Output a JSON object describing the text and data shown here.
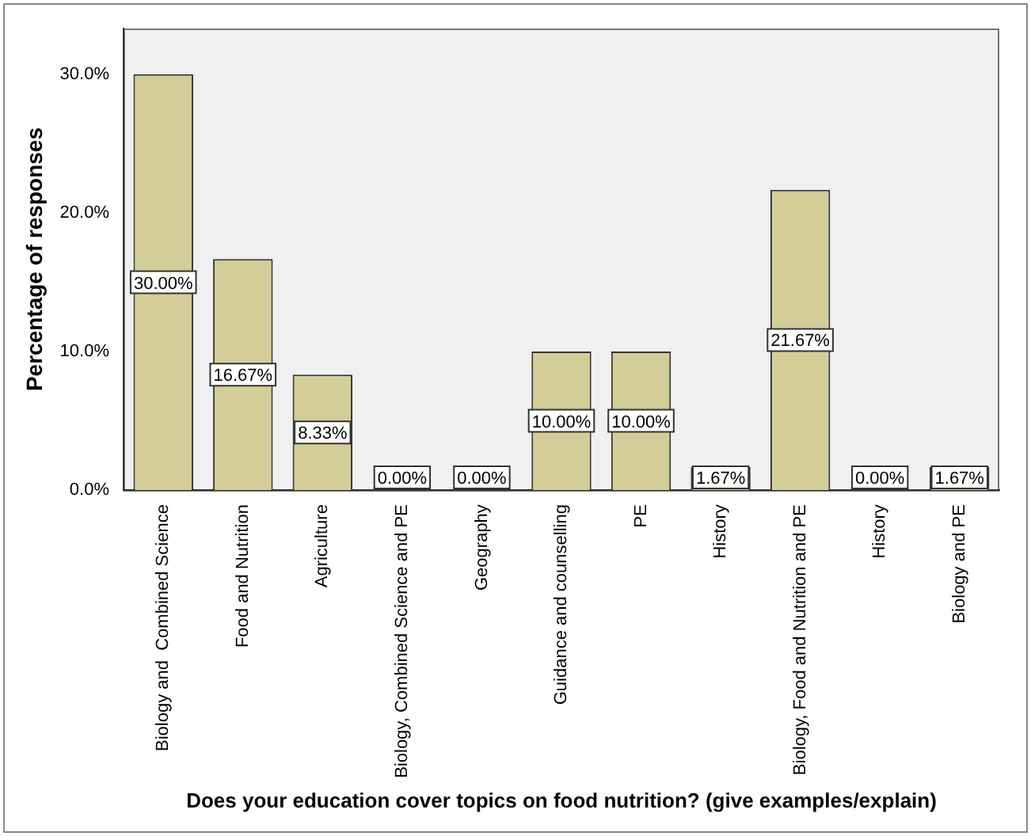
{
  "chart_data": {
    "type": "bar",
    "xlabel": "Does your education cover topics on food nutrition? (give examples/explain)",
    "ylabel": "Percentage of responses",
    "categories": [
      "Biology and  Combined Science",
      "Food and Nutrition",
      "Agriculture",
      "Biology, Combined Science and PE",
      "Geography",
      "Guidance and counselling",
      "PE",
      "History",
      "Biology, Food and Nutrition and PE",
      "History",
      "Biology and PE"
    ],
    "values": [
      30,
      16.67,
      8.33,
      0,
      0,
      10,
      10,
      1.67,
      21.67,
      0,
      1.67
    ],
    "color": "#d3ce97",
    "value_labels": [
      "30.00%",
      "16.67%",
      "8.33%",
      "0.00%",
      "0.00%",
      "10.00%",
      "10.00%",
      "1.67%",
      "21.67%",
      "0.00%",
      "1.67%"
    ],
    "ylim": [
      0,
      33.3
    ],
    "yticks": [
      {
        "value": 0,
        "label": "0.0%"
      },
      {
        "value": 10,
        "label": "10.0%"
      },
      {
        "value": 20,
        "label": "20.0%"
      },
      {
        "value": 30,
        "label": "30.0%"
      }
    ],
    "grid": false,
    "legend": false
  }
}
